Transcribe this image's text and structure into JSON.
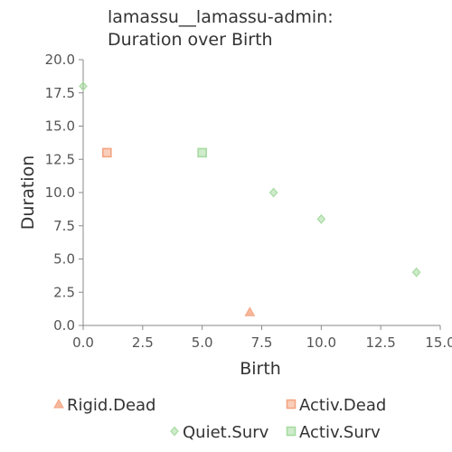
{
  "chart_data": {
    "type": "scatter",
    "title_lines": [
      "lamassu__lamassu-admin:",
      "Duration over Birth"
    ],
    "xlabel": "Birth",
    "ylabel": "Duration",
    "xlim": [
      0,
      15
    ],
    "ylim": [
      0,
      20
    ],
    "x_ticks": [
      0,
      2.5,
      5,
      7.5,
      10,
      12.5,
      15
    ],
    "x_tick_labels": [
      "0.0",
      "2.5",
      "5.0",
      "7.5",
      "10.0",
      "12.5",
      "15.0"
    ],
    "y_ticks": [
      0,
      2.5,
      5,
      7.5,
      10,
      12.5,
      15,
      17.5,
      20
    ],
    "y_tick_labels": [
      "0.0",
      "2.5",
      "5.0",
      "7.5",
      "10.0",
      "12.5",
      "15.0",
      "17.5",
      "20.0"
    ],
    "grid": false,
    "legend_position": "bottom",
    "series": [
      {
        "name": "Rigid.Dead",
        "marker": "triangle",
        "color": "#f4a582",
        "points": [
          {
            "x": 7,
            "y": 1
          }
        ]
      },
      {
        "name": "Activ.Dead",
        "marker": "square",
        "color": "#f4a582",
        "points": [
          {
            "x": 1,
            "y": 13
          }
        ]
      },
      {
        "name": "Quiet.Surv",
        "marker": "diamond",
        "color": "#a6dba0",
        "points": [
          {
            "x": 0,
            "y": 18
          },
          {
            "x": 8,
            "y": 10
          },
          {
            "x": 10,
            "y": 8
          },
          {
            "x": 14,
            "y": 4
          }
        ]
      },
      {
        "name": "Activ.Surv",
        "marker": "square",
        "color": "#a6dba0",
        "points": [
          {
            "x": 5,
            "y": 13
          }
        ]
      }
    ]
  }
}
